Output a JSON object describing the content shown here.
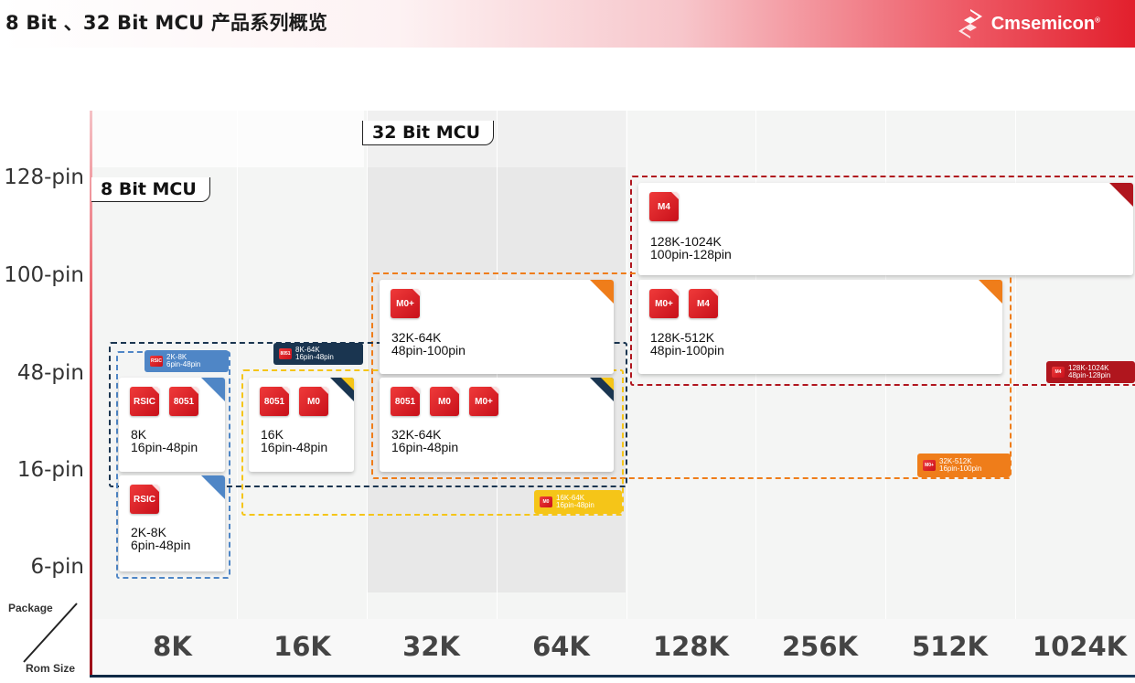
{
  "header": {
    "title": "8 Bit 、32 Bit MCU 产品系列概览",
    "brand": "Cmsemicon",
    "brand_mark": "®",
    "brand_color": "#e21f2c"
  },
  "axes": {
    "corner_top": "Package",
    "corner_bottom": "Rom Size",
    "y": [
      "128-pin",
      "100-pin",
      "48-pin",
      "16-pin",
      "6-pin"
    ],
    "x": [
      "8K",
      "16K",
      "32K",
      "64K",
      "128K",
      "256K",
      "512K",
      "1024K"
    ]
  },
  "families": {
    "bit8": "8 Bit MCU",
    "bit32": "32 Bit MCU"
  },
  "cards": [
    {
      "chips": [
        "M4"
      ],
      "rom": "128K-1024K",
      "pins": "100pin-128pin"
    },
    {
      "chips": [
        "M0+"
      ],
      "rom": "32K-64K",
      "pins": "48pin-100pin"
    },
    {
      "chips": [
        "M0+",
        "M4"
      ],
      "rom": "128K-512K",
      "pins": "48pin-100pin"
    },
    {
      "chips": [
        "RSIC",
        "8051"
      ],
      "rom": "8K",
      "pins": "16pin-48pin"
    },
    {
      "chips": [
        "8051",
        "M0"
      ],
      "rom": "16K",
      "pins": "16pin-48pin"
    },
    {
      "chips": [
        "8051",
        "M0",
        "M0+"
      ],
      "rom": "32K-64K",
      "pins": "16pin-48pin"
    },
    {
      "chips": [
        "RSIC"
      ],
      "rom": "2K-8K",
      "pins": "6pin-48pin"
    }
  ],
  "group_labels": [
    {
      "chip": "RSIC",
      "line1": "2K-8K",
      "line2": "6pin-48pin",
      "color": "#4f86c6"
    },
    {
      "chip": "8051",
      "line1": "8K-64K",
      "line2": "16pin-48pin",
      "color": "#1a3550"
    },
    {
      "chip": "M0",
      "line1": "16K-64K",
      "line2": "16pin-48pin",
      "color": "#f5c518"
    },
    {
      "chip": "M0+",
      "line1": "32K-512K",
      "line2": "16pin-100pin",
      "color": "#ef7d1a"
    },
    {
      "chip": "M4",
      "line1": "128K-1024K",
      "line2": "48pin-128pin",
      "color": "#b0161e"
    }
  ]
}
